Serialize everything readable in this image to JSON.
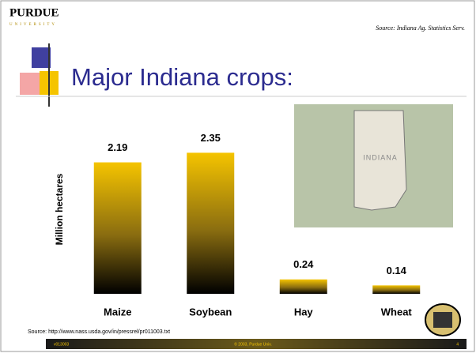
{
  "logo": {
    "name": "PURDUE",
    "sub": "UNIVERSITY"
  },
  "source_top": "Source: Indiana Ag. Statistics Serv.",
  "chart_data": {
    "type": "bar",
    "title": "Major Indiana crops:",
    "y_label": "Million hectares",
    "categories": [
      "Maize",
      "Soybean",
      "Hay",
      "Wheat"
    ],
    "values": [
      2.19,
      2.35,
      0.24,
      0.14
    ],
    "color": "#f5c400",
    "ylim": [
      0,
      2.5
    ]
  },
  "map_label": "INDIANA",
  "source_bottom": "Source: http://www.nass.usda.gov/in/pressrel/pr011003.txt",
  "footer": {
    "left": "v013003",
    "center": "© 2003, Purdue Univ.",
    "page": "4"
  }
}
